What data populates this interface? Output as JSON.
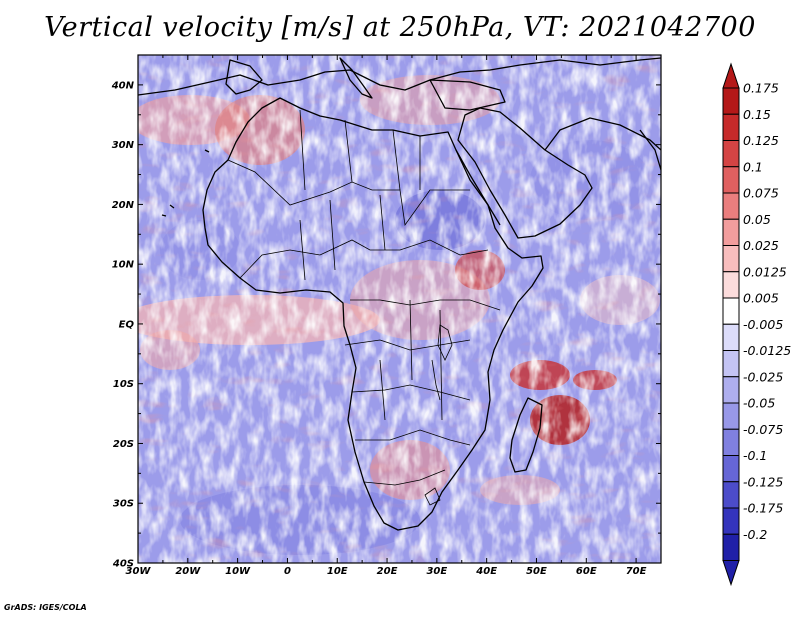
{
  "title": "Vertical velocity [m/s] at 250hPa, VT: 2021042700",
  "credit": "GrADS: IGES/COLA",
  "map": {
    "lon_range": [
      -30,
      75
    ],
    "lat_range": [
      -40,
      45
    ],
    "lat_labels": [
      "40N",
      "30N",
      "20N",
      "10N",
      "EQ",
      "10S",
      "20S",
      "30S",
      "40S"
    ],
    "lon_labels": [
      "30W",
      "20W",
      "10W",
      "0",
      "10E",
      "20E",
      "30E",
      "40E",
      "50E",
      "60E",
      "70E"
    ]
  },
  "colorbar": {
    "labels": [
      "0.175",
      "0.15",
      "0.125",
      "0.1",
      "0.075",
      "0.05",
      "0.025",
      "0.0125",
      "0.005",
      "-0.005",
      "-0.0125",
      "-0.025",
      "-0.05",
      "-0.075",
      "-0.1",
      "-0.125",
      "-0.175",
      "-0.2"
    ],
    "colors": [
      "#b41818",
      "#c62a2a",
      "#d44444",
      "#e06060",
      "#ea7e7e",
      "#f29d9d",
      "#f8bdbd",
      "#fcdcdc",
      "#ffffff",
      "#dcdcfa",
      "#c4c4f4",
      "#aeaeee",
      "#9898e8",
      "#8080e0",
      "#6666d6",
      "#4c4cca",
      "#3434bc",
      "#2020a8"
    ]
  }
}
